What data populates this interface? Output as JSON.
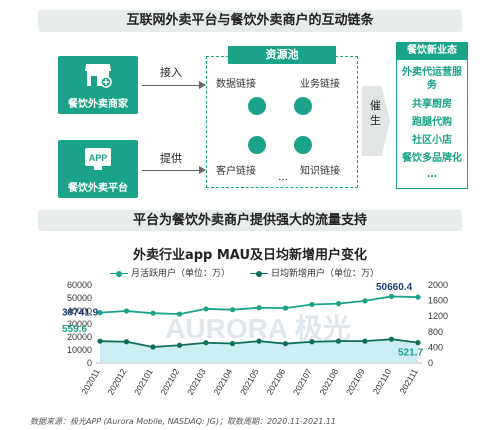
{
  "diagram": {
    "title": "互联网外卖平台与餐饮外卖商户的互动链条",
    "merchant": {
      "label": "餐饮外卖商家",
      "flow_label": "接入"
    },
    "platform": {
      "label": "餐饮外卖平台",
      "icon_text": "APP",
      "flow_label": "提供"
    },
    "pool": {
      "title": "资源池",
      "items": [
        "数据链接",
        "业务链接",
        "客户链接",
        "知识链接"
      ],
      "ellipsis": "…"
    },
    "promote_label": "催生",
    "new_business": {
      "title": "餐饮新业态",
      "items": [
        "外卖代运营服务",
        "共享厨房",
        "跑腿代购",
        "社区小店",
        "餐饮多品牌化",
        "…"
      ]
    }
  },
  "section_title": "平台为餐饮外卖商户提供强大的流量支持",
  "chart_data": {
    "type": "line",
    "title": "外卖行业app MAU及日均新增用户变化",
    "categories": [
      "202011",
      "202012",
      "202101",
      "202102",
      "202103",
      "202104",
      "202105",
      "202106",
      "202107",
      "202108",
      "202109",
      "202110",
      "202111"
    ],
    "series": [
      {
        "name": "月活跃用户（单位：万）",
        "axis": "left",
        "color": "#1aa389",
        "values": [
          38741.9,
          40000,
          38300,
          37600,
          41600,
          41000,
          42500,
          42200,
          45000,
          45700,
          47800,
          51200,
          50660.4
        ],
        "labels": {
          "first": "38741.9",
          "last": "50660.4"
        }
      },
      {
        "name": "日均新增用户（单位：万）",
        "axis": "right",
        "color": "#0f6e59",
        "values": [
          559.6,
          545,
          410,
          455,
          520,
          500,
          560,
          495,
          545,
          560,
          560,
          610,
          521.7
        ],
        "labels": {
          "first": "559.6",
          "last": "521.7"
        }
      }
    ],
    "y_left": {
      "min": 0,
      "max": 60000,
      "ticks": [
        "0",
        "10000",
        "20000",
        "30000",
        "40000",
        "50000",
        "60000"
      ]
    },
    "y_right": {
      "min": 0,
      "max": 2000,
      "ticks": [
        "0",
        "400",
        "800",
        "1200",
        "1600",
        "2000"
      ]
    },
    "legend_position": "top",
    "watermark": "AURORA 极光"
  },
  "source": "数据来源：极光APP (Aurora Mobile, NASDAQ: JG)；取数周期：2020.11-2021.11"
}
